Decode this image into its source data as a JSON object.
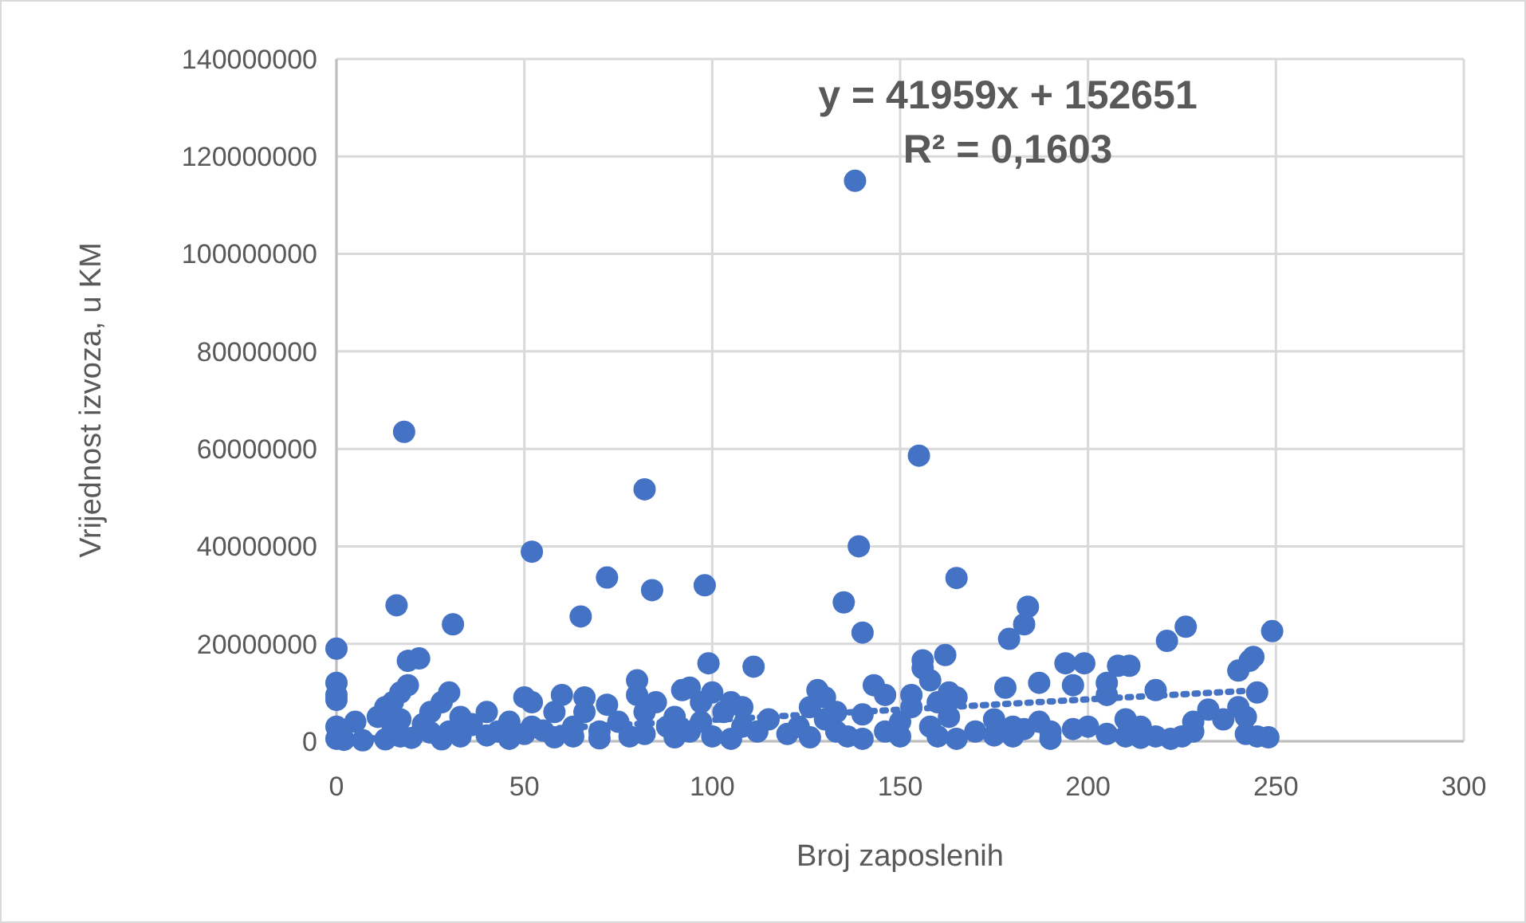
{
  "chart_data": {
    "type": "scatter",
    "xlabel": "Broj zaposlenih",
    "ylabel": "Vrijednost izvoza, u KM",
    "xlim": [
      0,
      300
    ],
    "xticks": [
      0,
      50,
      100,
      150,
      200,
      250,
      300
    ],
    "ylim": [
      0,
      140000000
    ],
    "yticks": [
      0,
      20000000,
      40000000,
      60000000,
      80000000,
      100000000,
      120000000,
      140000000
    ],
    "grid": true,
    "annotations": [
      "y = 41959x + 152651",
      "R² = 0,1603"
    ],
    "series": [
      {
        "color": "#4472c4",
        "marker": "circle",
        "x": [
          18,
          82,
          52,
          72,
          84,
          65,
          16,
          31,
          0,
          19,
          22,
          138,
          155,
          139,
          98,
          135,
          140,
          99,
          111,
          165,
          184,
          183,
          179,
          226,
          249,
          221,
          243,
          244,
          156,
          156,
          162,
          194,
          199,
          208,
          211,
          0,
          0,
          0,
          0,
          0,
          2,
          5,
          7,
          11,
          13,
          13,
          15,
          15,
          17,
          17,
          17,
          19,
          20,
          23,
          25,
          25,
          28,
          28,
          30,
          30,
          33,
          33,
          36,
          40,
          40,
          43,
          46,
          46,
          50,
          50,
          52,
          52,
          55,
          58,
          58,
          60,
          63,
          63,
          66,
          66,
          70,
          70,
          72,
          75,
          78,
          80,
          80,
          82,
          82,
          85,
          88,
          90,
          90,
          92,
          94,
          94,
          97,
          97,
          100,
          100,
          103,
          105,
          105,
          108,
          108,
          112,
          115,
          120,
          123,
          126,
          126,
          128,
          130,
          130,
          133,
          133,
          136,
          140,
          140,
          143,
          146,
          146,
          150,
          150,
          153,
          153,
          158,
          158,
          160,
          160,
          163,
          163,
          165,
          165,
          170,
          175,
          175,
          178,
          180,
          180,
          183,
          187,
          187,
          190,
          190,
          196,
          196,
          200,
          205,
          205,
          205,
          210,
          210,
          214,
          214,
          218,
          218,
          222,
          225,
          228,
          228,
          232,
          236,
          240,
          240,
          242,
          242,
          245,
          245,
          248
        ],
        "values": [
          63500000,
          51700000,
          38900000,
          33600000,
          31000000,
          25600000,
          27900000,
          24000000,
          19000000,
          16500000,
          17000000,
          115000000,
          58600000,
          40000000,
          32000000,
          28500000,
          22300000,
          16000000,
          15300000,
          33500000,
          27600000,
          24000000,
          21000000,
          23500000,
          22600000,
          20600000,
          16500000,
          17300000,
          16600000,
          15000000,
          17700000,
          16000000,
          16000000,
          15500000,
          15500000,
          500000,
          3000000,
          8500000,
          9500000,
          12000000,
          300000,
          4000000,
          200000,
          5000000,
          7000000,
          400000,
          2800000,
          8000000,
          10000000,
          4500000,
          1000000,
          11500000,
          700000,
          3500000,
          1800000,
          6000000,
          8000000,
          400000,
          10000000,
          2000000,
          5000000,
          1000000,
          3500000,
          6000000,
          1200000,
          2000000,
          4000000,
          500000,
          9000000,
          1500000,
          8000000,
          3000000,
          2200000,
          800000,
          6000000,
          9500000,
          3000000,
          1000000,
          9000000,
          6000000,
          2000000,
          600000,
          7500000,
          4000000,
          1000000,
          9500000,
          12500000,
          1500000,
          6000000,
          8000000,
          3000000,
          5000000,
          800000,
          10500000,
          11000000,
          2000000,
          4000000,
          8000000,
          1000000,
          10000000,
          6000000,
          500000,
          8000000,
          7000000,
          3000000,
          2000000,
          4500000,
          1500000,
          3000000,
          7000000,
          800000,
          10500000,
          9000000,
          4500000,
          2000000,
          6000000,
          1000000,
          5500000,
          500000,
          11500000,
          2000000,
          9500000,
          4000000,
          1000000,
          9500000,
          7000000,
          3000000,
          12500000,
          1000000,
          8000000,
          10000000,
          5000000,
          500000,
          9000000,
          2000000,
          1200000,
          4500000,
          11000000,
          3000000,
          1000000,
          2500000,
          12000000,
          4000000,
          500000,
          2000000,
          2500000,
          11500000,
          3000000,
          1500000,
          9500000,
          12000000,
          1000000,
          4500000,
          700000,
          3000000,
          1000000,
          10500000,
          500000,
          1000000,
          2000000,
          4000000,
          6500000,
          4500000,
          14500000,
          7000000,
          1500000,
          5000000,
          10000000,
          1000000,
          800000
        ]
      },
      {
        "type": "line",
        "color": "#4472c4",
        "marker": "none",
        "line_style": "dotted",
        "x": [
          0,
          248
        ],
        "values": [
          200000,
          10600000
        ]
      }
    ]
  }
}
